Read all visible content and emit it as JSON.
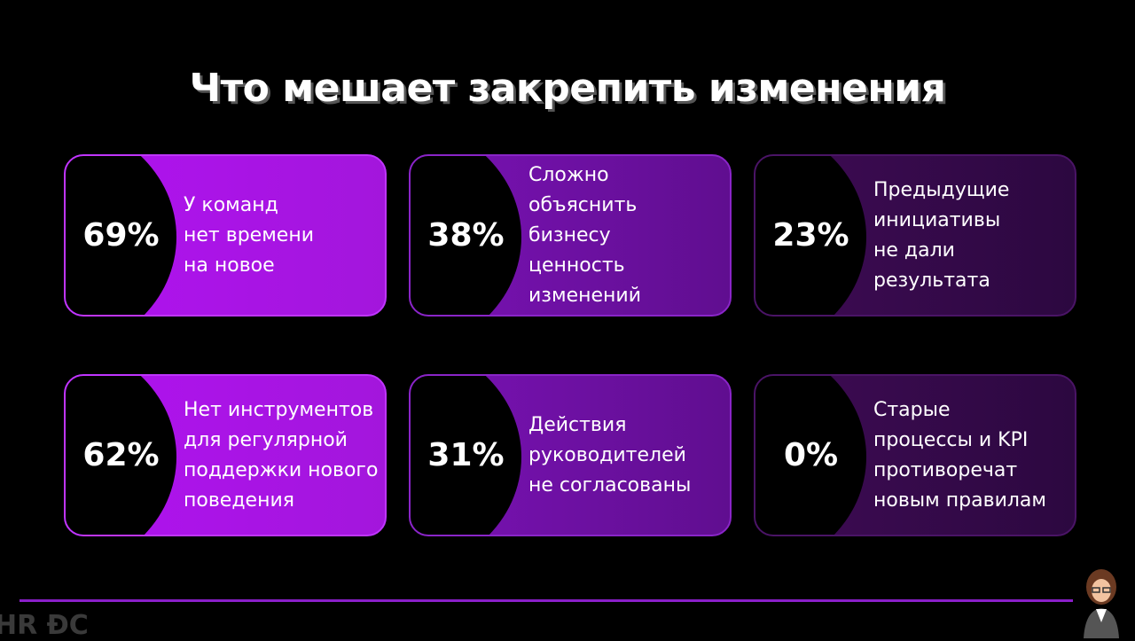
{
  "header": {
    "title": "Что мешает закрепить изменения"
  },
  "cards": [
    {
      "value": "69%",
      "lines": [
        "У команд",
        "нет времени",
        "на новое"
      ]
    },
    {
      "value": "38%",
      "lines": [
        "Сложно",
        "объяснить",
        "бизнесу",
        "ценность",
        "изменений"
      ]
    },
    {
      "value": "23%",
      "lines": [
        "Предыдущие",
        "инициативы",
        "не дали",
        "результата"
      ]
    },
    {
      "value": "62%",
      "lines": [
        "Нет инструментов",
        "для регулярной",
        "поддержки нового",
        "поведения"
      ]
    },
    {
      "value": "31%",
      "lines": [
        "Действия",
        "руководителей",
        "не согласованы"
      ]
    },
    {
      "value": "0%",
      "lines": [
        "Старые",
        "процессы и KPI",
        "противоречат",
        "новым правилам"
      ]
    }
  ],
  "footer": {
    "logo": "HR ĐC"
  }
}
